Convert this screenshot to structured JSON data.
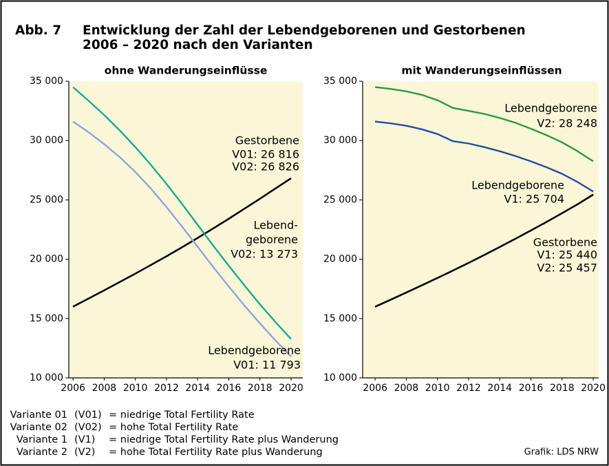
{
  "title": {
    "label": "Abb. 7",
    "lines": [
      "Entwicklung der Zahl der Lebendgeborenen und Gestorbenen",
      "2006 – 2020 nach den Varianten"
    ]
  },
  "chart_data": [
    {
      "type": "line",
      "subtitle": "ohne Wanderungseinflüsse",
      "x": [
        2006,
        2007,
        2008,
        2009,
        2010,
        2011,
        2012,
        2013,
        2014,
        2015,
        2016,
        2017,
        2018,
        2019,
        2020
      ],
      "xlim": [
        2005.73,
        2020.75
      ],
      "xticks": [
        2006,
        2008,
        2010,
        2012,
        2014,
        2016,
        2018,
        2020
      ],
      "ylim": [
        10000,
        35000
      ],
      "yticks": [
        {
          "value": 10000,
          "label": "10 000"
        },
        {
          "value": 15000,
          "label": "15 000"
        },
        {
          "value": 20000,
          "label": "20 000"
        },
        {
          "value": 25000,
          "label": "25 000"
        },
        {
          "value": 30000,
          "label": "30 000"
        },
        {
          "value": 35000,
          "label": "35 000"
        }
      ],
      "annotations": [
        "Gestorbene",
        "Lebend-",
        "geborene",
        "Lebendgeborene"
      ],
      "series": [
        {
          "name": "V01",
          "color": "#000000",
          "values": [
            16000,
            16690,
            17380,
            18080,
            18790,
            19510,
            20250,
            21010,
            21790,
            22590,
            23410,
            24250,
            25100,
            25960,
            26816
          ],
          "value_labels": [
            null,
            null,
            null,
            null,
            null,
            null,
            null,
            null,
            null,
            null,
            null,
            null,
            null,
            null,
            "V01: 26 816"
          ]
        },
        {
          "name": "V02",
          "color": "#000000",
          "values": [
            16000,
            16690,
            17380,
            18080,
            18790,
            19510,
            20250,
            21010,
            21790,
            22590,
            23410,
            24250,
            25100,
            25965,
            26826
          ],
          "value_labels": [
            null,
            null,
            null,
            null,
            null,
            null,
            null,
            null,
            null,
            null,
            null,
            null,
            null,
            null,
            "V02: 26 826"
          ]
        },
        {
          "name": "V02",
          "color": "#1aa98f",
          "values": [
            34500,
            33350,
            32150,
            30850,
            29450,
            27950,
            26350,
            24650,
            22900,
            21150,
            19450,
            17800,
            16200,
            14700,
            13273
          ],
          "value_labels": [
            null,
            null,
            null,
            null,
            null,
            null,
            null,
            null,
            null,
            null,
            null,
            null,
            null,
            null,
            "V02: 13 273"
          ]
        },
        {
          "name": "V01",
          "color": "#8ea6d8",
          "values": [
            31600,
            30700,
            29700,
            28600,
            27350,
            25950,
            24400,
            22750,
            21050,
            19350,
            17700,
            16100,
            14600,
            13150,
            11793
          ],
          "value_labels": [
            null,
            null,
            null,
            null,
            null,
            null,
            null,
            null,
            null,
            null,
            null,
            null,
            null,
            null,
            "V01: 11 793"
          ]
        }
      ]
    },
    {
      "type": "line",
      "subtitle": "mit Wanderungseinflüssen",
      "x": [
        2006,
        2007,
        2008,
        2009,
        2010,
        2011,
        2012,
        2013,
        2014,
        2015,
        2016,
        2017,
        2018,
        2019,
        2020
      ],
      "xlim": [
        2005.2,
        2020.35
      ],
      "xticks": [
        2006,
        2008,
        2010,
        2012,
        2014,
        2016,
        2018,
        2020
      ],
      "ylim": [
        10000,
        35000
      ],
      "yticks": [
        {
          "value": 10000,
          "label": "10 000"
        },
        {
          "value": 15000,
          "label": "15 000"
        },
        {
          "value": 20000,
          "label": "20 000"
        },
        {
          "value": 25000,
          "label": "25 000"
        },
        {
          "value": 30000,
          "label": "30 000"
        },
        {
          "value": 35000,
          "label": "35 000"
        }
      ],
      "annotations": [
        "Lebendgeborene",
        "Lebendgeborene",
        "Gestorbene"
      ],
      "series": [
        {
          "name": "V2",
          "color": "#2a9a3e",
          "values": [
            34500,
            34350,
            34150,
            33850,
            33400,
            32750,
            32500,
            32250,
            31900,
            31500,
            31000,
            30450,
            29850,
            29100,
            28248
          ],
          "value_labels": [
            null,
            null,
            null,
            null,
            null,
            null,
            null,
            null,
            null,
            null,
            null,
            null,
            null,
            null,
            "V2: 28 248"
          ]
        },
        {
          "name": "V1",
          "color": "#1f4ea0",
          "values": [
            31600,
            31450,
            31250,
            30950,
            30550,
            29950,
            29750,
            29450,
            29100,
            28700,
            28250,
            27750,
            27200,
            26500,
            25704
          ],
          "value_labels": [
            null,
            null,
            null,
            null,
            null,
            null,
            null,
            null,
            null,
            null,
            null,
            null,
            null,
            null,
            "V1: 25 704"
          ]
        },
        {
          "name": "V1",
          "color": "#000000",
          "values": [
            16000,
            16590,
            17190,
            17800,
            18420,
            19050,
            19695,
            20355,
            21030,
            21720,
            22425,
            23145,
            23880,
            24630,
            25440
          ],
          "value_labels": [
            null,
            null,
            null,
            null,
            null,
            null,
            null,
            null,
            null,
            null,
            null,
            null,
            null,
            null,
            "V1: 25 440"
          ]
        },
        {
          "name": "V2",
          "color": "#000000",
          "values": [
            16000,
            16590,
            17190,
            17800,
            18420,
            19050,
            19695,
            20355,
            21030,
            21720,
            22425,
            23145,
            23880,
            24635,
            25457
          ],
          "value_labels": [
            null,
            null,
            null,
            null,
            null,
            null,
            null,
            null,
            null,
            null,
            null,
            null,
            null,
            null,
            "V2: 25 457"
          ]
        }
      ]
    }
  ],
  "notes": [
    [
      "Variante 01",
      "(V01)",
      "= niedrige Total Fertility Rate"
    ],
    [
      "Variante 02",
      "(V02)",
      "= hohe Total Fertility Rate"
    ],
    [
      "Variante 1",
      "(V1)",
      "= niedrige Total Fertility Rate plus Wanderung"
    ],
    [
      "Variante 2",
      "(V2)",
      "= hohe Total Fertility Rate plus Wanderung"
    ]
  ],
  "source": "Grafik: LDS NRW"
}
